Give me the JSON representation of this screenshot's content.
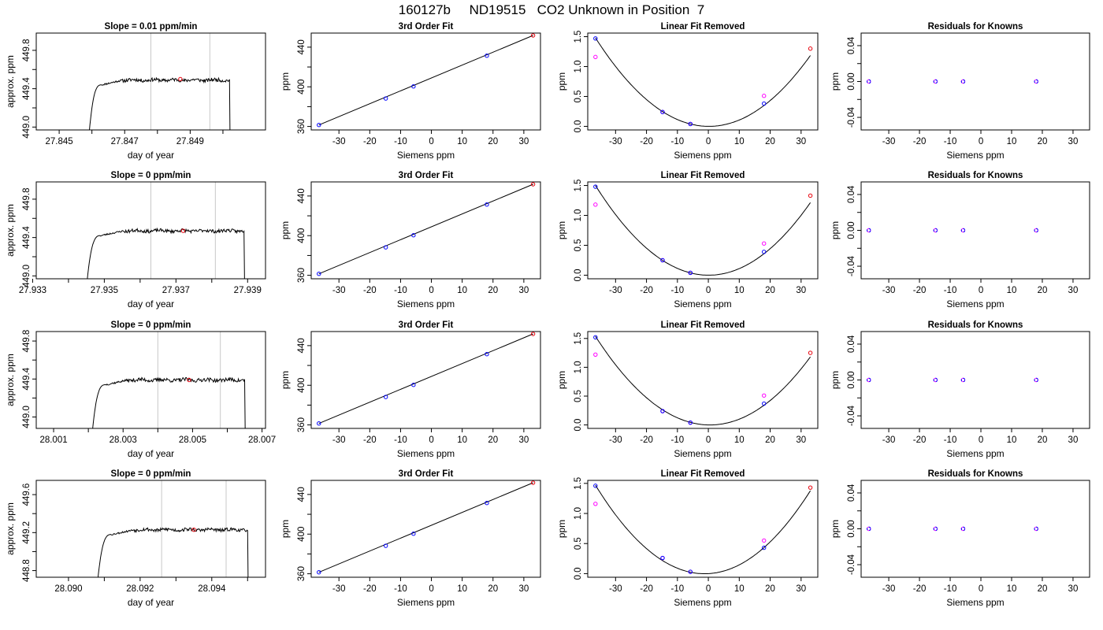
{
  "figure": {
    "title": "160127b     ND19515   CO2 Unknown in Position  7"
  },
  "colors": {
    "trace": "#000000",
    "window_marker": "#c8c8c8",
    "mean_point": "#e8000b",
    "known_point": "#0000ff",
    "raw_point": "#ff00ff",
    "fit_line": "#000000"
  },
  "chart_data": [
    {
      "type": "line",
      "row": 1,
      "panel": "trace",
      "title": "Slope =  0.01  ppm/min",
      "xlabel": "day of year",
      "ylabel": "approx. ppm",
      "xlim": [
        27.8443,
        27.8513
      ],
      "ylim": [
        448.97,
        449.98
      ],
      "xticks": [
        "27.845",
        "27.847",
        "27.849"
      ],
      "xtick_values": [
        27.845,
        27.847,
        27.849
      ],
      "xticks_minor": [
        27.846,
        27.848,
        27.85
      ],
      "yticks": [
        "449.0",
        "449.4",
        "449.8"
      ],
      "ytick_values": [
        449.0,
        449.4,
        449.8
      ],
      "yticks_minor": [
        449.2,
        449.6
      ],
      "window": [
        27.8478,
        27.8496
      ],
      "mean_point": {
        "x": 27.8487,
        "y": 449.5
      },
      "trace": {
        "start": 27.8459,
        "end": 27.8502,
        "rise_end": 27.8463,
        "level": 449.49,
        "jitter": 0.018,
        "seed": 11
      }
    },
    {
      "type": "line",
      "row": 2,
      "panel": "trace",
      "title": "Slope =  0  ppm/min",
      "xlabel": "day of year",
      "ylabel": "approx. ppm",
      "xlim": [
        27.9331,
        27.9395
      ],
      "ylim": [
        448.97,
        449.98
      ],
      "xticks": [
        "27.933",
        "27.935",
        "27.937",
        "27.939"
      ],
      "xtick_values": [
        27.933,
        27.935,
        27.937,
        27.939
      ],
      "xticks_minor": [
        27.934,
        27.936,
        27.938
      ],
      "yticks": [
        "449.0",
        "449.4",
        "449.8"
      ],
      "ytick_values": [
        449.0,
        449.4,
        449.8
      ],
      "yticks_minor": [
        449.2,
        449.6
      ],
      "window": [
        27.9363,
        27.9381
      ],
      "mean_point": {
        "x": 27.9372,
        "y": 449.47
      },
      "trace": {
        "start": 27.9345,
        "end": 27.9389,
        "rise_end": 27.9349,
        "level": 449.47,
        "jitter": 0.018,
        "seed": 23
      }
    },
    {
      "type": "line",
      "row": 3,
      "panel": "trace",
      "title": "Slope =  0  ppm/min",
      "xlabel": "day of year",
      "ylabel": "approx. ppm",
      "xlim": [
        28.0005,
        28.0071
      ],
      "ylim": [
        448.88,
        449.9
      ],
      "xticks": [
        "28.001",
        "28.003",
        "28.005",
        "28.007"
      ],
      "xtick_values": [
        28.001,
        28.003,
        28.005,
        28.007
      ],
      "xticks_minor": [
        28.002,
        28.004,
        28.006
      ],
      "yticks": [
        "449.0",
        "449.4",
        "449.8"
      ],
      "ytick_values": [
        449.0,
        449.4,
        449.8
      ],
      "yticks_minor": [
        449.2,
        449.6
      ],
      "window": [
        28.004,
        28.0058
      ],
      "mean_point": {
        "x": 28.0049,
        "y": 449.39
      },
      "trace": {
        "start": 28.0021,
        "end": 28.0065,
        "rise_end": 28.0025,
        "level": 449.39,
        "jitter": 0.02,
        "seed": 37
      }
    },
    {
      "type": "line",
      "row": 4,
      "panel": "trace",
      "title": "Slope =  0  ppm/min",
      "xlabel": "day of year",
      "ylabel": "approx. ppm",
      "xlim": [
        28.0891,
        28.0955
      ],
      "ylim": [
        448.73,
        449.75
      ],
      "xticks": [
        "28.090",
        "28.092",
        "28.094"
      ],
      "xtick_values": [
        28.09,
        28.092,
        28.094
      ],
      "xticks_minor": [
        28.091,
        28.093,
        28.095
      ],
      "yticks": [
        "448.8",
        "449.2",
        "449.6"
      ],
      "ytick_values": [
        448.8,
        449.2,
        449.6
      ],
      "yticks_minor": [
        449.0,
        449.4
      ],
      "window": [
        28.0926,
        28.0944
      ],
      "mean_point": {
        "x": 28.0935,
        "y": 449.23
      },
      "trace": {
        "start": 28.0908,
        "end": 28.095,
        "rise_end": 28.0912,
        "level": 449.23,
        "jitter": 0.018,
        "seed": 53
      }
    },
    {
      "type": "scatter",
      "row": 1,
      "panel": "fit",
      "title": "3rd Order Fit",
      "xlabel": "Siemens ppm",
      "ylabel": "ppm",
      "xlim": [
        -39,
        35.4
      ],
      "ylim": [
        356.5,
        454.2
      ],
      "xticks": [
        "-30",
        "-20",
        "-10",
        "0",
        "10",
        "20",
        "30"
      ],
      "xtick_values": [
        -30,
        -20,
        -10,
        0,
        10,
        20,
        30
      ],
      "yticks": [
        "360",
        "400",
        "440"
      ],
      "ytick_values": [
        360,
        400,
        440
      ],
      "yticks_minor": [
        380,
        420
      ],
      "line": [
        [
          -36.5,
          361.5
        ],
        [
          33,
          451.8
        ]
      ],
      "knowns": [
        {
          "x": -36.5,
          "y": 361.5
        },
        {
          "x": -14.8,
          "y": 388.2
        },
        {
          "x": -5.8,
          "y": 400.4
        },
        {
          "x": 18,
          "y": 431.4
        }
      ],
      "unknown": {
        "x": 33,
        "y": 451.8
      }
    },
    {
      "type": "scatter",
      "row": 2,
      "panel": "fit",
      "title": "3rd Order Fit",
      "xlabel": "Siemens ppm",
      "ylabel": "ppm",
      "xlim": [
        -39,
        35.4
      ],
      "ylim": [
        356.5,
        454.2
      ],
      "xticks": [
        "-30",
        "-20",
        "-10",
        "0",
        "10",
        "20",
        "30"
      ],
      "xtick_values": [
        -30,
        -20,
        -10,
        0,
        10,
        20,
        30
      ],
      "yticks": [
        "360",
        "400",
        "440"
      ],
      "ytick_values": [
        360,
        400,
        440
      ],
      "yticks_minor": [
        380,
        420
      ],
      "line": [
        [
          -36.5,
          361.5
        ],
        [
          33,
          451.8
        ]
      ],
      "knowns": [
        {
          "x": -36.5,
          "y": 361.5
        },
        {
          "x": -14.8,
          "y": 388.2
        },
        {
          "x": -5.8,
          "y": 400.4
        },
        {
          "x": 18,
          "y": 431.4
        }
      ],
      "unknown": {
        "x": 33,
        "y": 451.8
      }
    },
    {
      "type": "scatter",
      "row": 3,
      "panel": "fit",
      "title": "3rd Order Fit",
      "xlabel": "Siemens ppm",
      "ylabel": "ppm",
      "xlim": [
        -39,
        35.4
      ],
      "ylim": [
        356.5,
        454.2
      ],
      "xticks": [
        "-30",
        "-20",
        "-10",
        "0",
        "10",
        "20",
        "30"
      ],
      "xtick_values": [
        -30,
        -20,
        -10,
        0,
        10,
        20,
        30
      ],
      "yticks": [
        "360",
        "400",
        "440"
      ],
      "ytick_values": [
        360,
        400,
        440
      ],
      "yticks_minor": [
        380,
        420
      ],
      "line": [
        [
          -36.5,
          361.5
        ],
        [
          33,
          451.8
        ]
      ],
      "knowns": [
        {
          "x": -36.5,
          "y": 361.5
        },
        {
          "x": -14.8,
          "y": 388.2
        },
        {
          "x": -5.8,
          "y": 400.4
        },
        {
          "x": 18,
          "y": 431.4
        }
      ],
      "unknown": {
        "x": 33,
        "y": 451.8
      }
    },
    {
      "type": "scatter",
      "row": 4,
      "panel": "fit",
      "title": "3rd Order Fit",
      "xlabel": "Siemens ppm",
      "ylabel": "ppm",
      "xlim": [
        -39,
        35.4
      ],
      "ylim": [
        356.5,
        454.2
      ],
      "xticks": [
        "-30",
        "-20",
        "-10",
        "0",
        "10",
        "20",
        "30"
      ],
      "xtick_values": [
        -30,
        -20,
        -10,
        0,
        10,
        20,
        30
      ],
      "yticks": [
        "360",
        "400",
        "440"
      ],
      "ytick_values": [
        360,
        400,
        440
      ],
      "yticks_minor": [
        380,
        420
      ],
      "line": [
        [
          -36.5,
          361.5
        ],
        [
          33,
          451.8
        ]
      ],
      "knowns": [
        {
          "x": -36.5,
          "y": 361.5
        },
        {
          "x": -14.8,
          "y": 388.2
        },
        {
          "x": -5.8,
          "y": 400.4
        },
        {
          "x": 18,
          "y": 431.4
        }
      ],
      "unknown": {
        "x": 33,
        "y": 451.8
      }
    },
    {
      "type": "scatter",
      "row": 1,
      "panel": "linear_removed",
      "title": "Linear Fit Removed",
      "xlabel": "Siemens ppm",
      "ylabel": "ppm",
      "xlim": [
        -39,
        35.4
      ],
      "ylim": [
        -0.06,
        1.56
      ],
      "xticks": [
        "-30",
        "-20",
        "-10",
        "0",
        "10",
        "20",
        "30"
      ],
      "xtick_values": [
        -30,
        -20,
        -10,
        0,
        10,
        20,
        30
      ],
      "yticks": [
        "0.0",
        "0.5",
        "1.0",
        "1.5"
      ],
      "ytick_values": [
        0,
        0.5,
        1.0,
        1.5
      ],
      "curve": {
        "a": 0.0011,
        "b": -0.0004,
        "c": 1e-05,
        "xrange": [
          -36.5,
          33
        ]
      },
      "knowns": [
        {
          "x": -36.5,
          "y": 1.47
        },
        {
          "x": -14.8,
          "y": 0.24
        },
        {
          "x": -5.8,
          "y": 0.04
        },
        {
          "x": 18,
          "y": 0.38
        }
      ],
      "raw": [
        {
          "x": -36.5,
          "y": 1.16
        },
        {
          "x": -14.8,
          "y": 0.24
        },
        {
          "x": -5.8,
          "y": 0.04
        },
        {
          "x": 18,
          "y": 0.51
        }
      ],
      "unknown": {
        "x": 33,
        "y": 1.3
      }
    },
    {
      "type": "scatter",
      "row": 2,
      "panel": "linear_removed",
      "title": "Linear Fit Removed",
      "xlabel": "Siemens ppm",
      "ylabel": "ppm",
      "xlim": [
        -39,
        35.4
      ],
      "ylim": [
        -0.06,
        1.56
      ],
      "xticks": [
        "-30",
        "-20",
        "-10",
        "0",
        "10",
        "20",
        "30"
      ],
      "xtick_values": [
        -30,
        -20,
        -10,
        0,
        10,
        20,
        30
      ],
      "yticks": [
        "0.0",
        "0.5",
        "1.0",
        "1.5"
      ],
      "ytick_values": [
        0,
        0.5,
        1.0,
        1.5
      ],
      "curve": {
        "a": 0.00112,
        "b": -0.0002,
        "c": 1e-05,
        "xrange": [
          -36.5,
          33
        ]
      },
      "knowns": [
        {
          "x": -36.5,
          "y": 1.48
        },
        {
          "x": -14.8,
          "y": 0.25
        },
        {
          "x": -5.8,
          "y": 0.04
        },
        {
          "x": 18,
          "y": 0.39
        }
      ],
      "raw": [
        {
          "x": -36.5,
          "y": 1.18
        },
        {
          "x": -14.8,
          "y": 0.25
        },
        {
          "x": -5.8,
          "y": 0.04
        },
        {
          "x": 18,
          "y": 0.53
        }
      ],
      "unknown": {
        "x": 33,
        "y": 1.33
      }
    },
    {
      "type": "scatter",
      "row": 3,
      "panel": "linear_removed",
      "title": "Linear Fit Removed",
      "xlabel": "Siemens ppm",
      "ylabel": "ppm",
      "xlim": [
        -39,
        35.4
      ],
      "ylim": [
        -0.06,
        1.62
      ],
      "xticks": [
        "-30",
        "-20",
        "-10",
        "0",
        "10",
        "20",
        "30"
      ],
      "xtick_values": [
        -30,
        -20,
        -10,
        0,
        10,
        20,
        30
      ],
      "yticks": [
        "0.0",
        "0.5",
        "1.0",
        "1.5"
      ],
      "ytick_values": [
        0,
        0.5,
        1.0,
        1.5
      ],
      "curve": {
        "a": 0.00112,
        "b": -0.0012,
        "c": 1e-05,
        "xrange": [
          -36.5,
          33
        ]
      },
      "knowns": [
        {
          "x": -36.5,
          "y": 1.52
        },
        {
          "x": -14.8,
          "y": 0.24
        },
        {
          "x": -5.8,
          "y": 0.04
        },
        {
          "x": 18,
          "y": 0.37
        }
      ],
      "raw": [
        {
          "x": -36.5,
          "y": 1.22
        },
        {
          "x": -14.8,
          "y": 0.24
        },
        {
          "x": -5.8,
          "y": 0.04
        },
        {
          "x": 18,
          "y": 0.51
        }
      ],
      "unknown": {
        "x": 33,
        "y": 1.25
      }
    },
    {
      "type": "scatter",
      "row": 4,
      "panel": "linear_removed",
      "title": "Linear Fit Removed",
      "xlabel": "Siemens ppm",
      "ylabel": "ppm",
      "xlim": [
        -39,
        35.4
      ],
      "ylim": [
        -0.06,
        1.55
      ],
      "xticks": [
        "-30",
        "-20",
        "-10",
        "0",
        "10",
        "20",
        "30"
      ],
      "xtick_values": [
        -30,
        -20,
        -10,
        0,
        10,
        20,
        30
      ],
      "yticks": [
        "0.0",
        "0.5",
        "1.0",
        "1.5"
      ],
      "ytick_values": [
        0,
        0.5,
        1.0,
        1.5
      ],
      "curve": {
        "a": 0.00118,
        "b": 0.0028,
        "c": 1e-05,
        "xrange": [
          -36.5,
          33
        ]
      },
      "knowns": [
        {
          "x": -36.5,
          "y": 1.46
        },
        {
          "x": -14.8,
          "y": 0.26
        },
        {
          "x": -5.8,
          "y": 0.03
        },
        {
          "x": 18,
          "y": 0.43
        }
      ],
      "raw": [
        {
          "x": -36.5,
          "y": 1.16
        },
        {
          "x": -14.8,
          "y": 0.26
        },
        {
          "x": -5.8,
          "y": 0.03
        },
        {
          "x": 18,
          "y": 0.55
        }
      ],
      "unknown": {
        "x": 33,
        "y": 1.43
      }
    },
    {
      "type": "scatter",
      "row": 1,
      "panel": "residuals",
      "title": "Residuals for Knowns",
      "xlabel": "Siemens ppm",
      "ylabel": "ppm",
      "xlim": [
        -39,
        35.4
      ],
      "ylim": [
        -0.054,
        0.054
      ],
      "xticks": [
        "-30",
        "-20",
        "-10",
        "0",
        "10",
        "20",
        "30"
      ],
      "xtick_values": [
        -30,
        -20,
        -10,
        0,
        10,
        20,
        30
      ],
      "yticks": [
        "-0.04",
        "0.00",
        "0.04"
      ],
      "ytick_values": [
        -0.04,
        0,
        0.04
      ],
      "yticks_minor": [
        -0.02,
        0.02
      ],
      "knowns": [
        {
          "x": -36.5,
          "y": 0
        },
        {
          "x": -14.8,
          "y": 0
        },
        {
          "x": -5.8,
          "y": 0
        },
        {
          "x": 18,
          "y": 0
        }
      ]
    },
    {
      "type": "scatter",
      "row": 2,
      "panel": "residuals",
      "title": "Residuals for Knowns",
      "xlabel": "Siemens ppm",
      "ylabel": "ppm",
      "xlim": [
        -39,
        35.4
      ],
      "ylim": [
        -0.054,
        0.054
      ],
      "xticks": [
        "-30",
        "-20",
        "-10",
        "0",
        "10",
        "20",
        "30"
      ],
      "xtick_values": [
        -30,
        -20,
        -10,
        0,
        10,
        20,
        30
      ],
      "yticks": [
        "-0.04",
        "0.00",
        "0.04"
      ],
      "ytick_values": [
        -0.04,
        0,
        0.04
      ],
      "yticks_minor": [
        -0.02,
        0.02
      ],
      "knowns": [
        {
          "x": -36.5,
          "y": 0
        },
        {
          "x": -14.8,
          "y": 0
        },
        {
          "x": -5.8,
          "y": 0
        },
        {
          "x": 18,
          "y": 0
        }
      ]
    },
    {
      "type": "scatter",
      "row": 3,
      "panel": "residuals",
      "title": "Residuals for Knowns",
      "xlabel": "Siemens ppm",
      "ylabel": "ppm",
      "xlim": [
        -39,
        35.4
      ],
      "ylim": [
        -0.054,
        0.054
      ],
      "xticks": [
        "-30",
        "-20",
        "-10",
        "0",
        "10",
        "20",
        "30"
      ],
      "xtick_values": [
        -30,
        -20,
        -10,
        0,
        10,
        20,
        30
      ],
      "yticks": [
        "-0.04",
        "0.00",
        "0.04"
      ],
      "ytick_values": [
        -0.04,
        0,
        0.04
      ],
      "yticks_minor": [
        -0.02,
        0.02
      ],
      "knowns": [
        {
          "x": -36.5,
          "y": 0
        },
        {
          "x": -14.8,
          "y": 0
        },
        {
          "x": -5.8,
          "y": 0
        },
        {
          "x": 18,
          "y": 0
        }
      ]
    },
    {
      "type": "scatter",
      "row": 4,
      "panel": "residuals",
      "title": "Residuals for Knowns",
      "xlabel": "Siemens ppm",
      "ylabel": "ppm",
      "xlim": [
        -39,
        35.4
      ],
      "ylim": [
        -0.054,
        0.054
      ],
      "xticks": [
        "-30",
        "-20",
        "-10",
        "0",
        "10",
        "20",
        "30"
      ],
      "xtick_values": [
        -30,
        -20,
        -10,
        0,
        10,
        20,
        30
      ],
      "yticks": [
        "-0.04",
        "0.00",
        "0.04"
      ],
      "ytick_values": [
        -0.04,
        0,
        0.04
      ],
      "yticks_minor": [
        -0.02,
        0.02
      ],
      "knowns": [
        {
          "x": -36.5,
          "y": 0
        },
        {
          "x": -14.8,
          "y": 0
        },
        {
          "x": -5.8,
          "y": 0
        },
        {
          "x": 18,
          "y": 0
        }
      ]
    }
  ]
}
